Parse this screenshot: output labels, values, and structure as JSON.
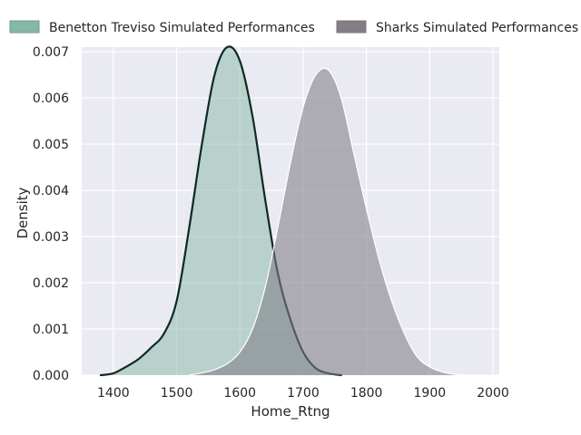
{
  "chart_data": {
    "type": "area",
    "title": "",
    "xlabel": "Home_Rtng",
    "ylabel": "Density",
    "xlim": [
      1350,
      2010
    ],
    "ylim": [
      0,
      0.0071
    ],
    "x_ticks": [
      1400,
      1500,
      1600,
      1700,
      1800,
      1900,
      2000
    ],
    "y_ticks": [
      0.0,
      0.001,
      0.002,
      0.003,
      0.004,
      0.005,
      0.006,
      0.007
    ],
    "x_tick_labels": [
      "1400",
      "1500",
      "1600",
      "1700",
      "1800",
      "1900",
      "2000"
    ],
    "y_tick_labels": [
      "0.000",
      "0.001",
      "0.002",
      "0.003",
      "0.004",
      "0.005",
      "0.006",
      "0.007"
    ],
    "grid": true,
    "legend_position": "top",
    "series": [
      {
        "name": "Benetton Treviso Simulated Performances",
        "color": "#86b8a8",
        "edge_color": "#0f2a20",
        "points": [
          [
            1380,
            0.0
          ],
          [
            1400,
            4e-05
          ],
          [
            1420,
            0.00018
          ],
          [
            1440,
            0.00035
          ],
          [
            1460,
            0.0006
          ],
          [
            1480,
            0.0009
          ],
          [
            1500,
            0.0016
          ],
          [
            1520,
            0.0032
          ],
          [
            1540,
            0.005
          ],
          [
            1560,
            0.0065
          ],
          [
            1580,
            0.0071
          ],
          [
            1600,
            0.0068
          ],
          [
            1620,
            0.0056
          ],
          [
            1640,
            0.0038
          ],
          [
            1660,
            0.0022
          ],
          [
            1680,
            0.0012
          ],
          [
            1700,
            0.0005
          ],
          [
            1720,
            0.00015
          ],
          [
            1740,
            4e-05
          ],
          [
            1760,
            0.0
          ]
        ]
      },
      {
        "name": "Sharks Simulated Performances",
        "color": "#827d87",
        "edge_color": "#ffffff",
        "points": [
          [
            1520,
            0.0
          ],
          [
            1540,
            5e-05
          ],
          [
            1560,
            0.00012
          ],
          [
            1580,
            0.00025
          ],
          [
            1600,
            0.0005
          ],
          [
            1620,
            0.001
          ],
          [
            1640,
            0.0019
          ],
          [
            1660,
            0.0032
          ],
          [
            1680,
            0.0046
          ],
          [
            1700,
            0.0058
          ],
          [
            1720,
            0.0065
          ],
          [
            1740,
            0.0066
          ],
          [
            1760,
            0.006
          ],
          [
            1780,
            0.0048
          ],
          [
            1800,
            0.0036
          ],
          [
            1820,
            0.0025
          ],
          [
            1840,
            0.0016
          ],
          [
            1860,
            0.0009
          ],
          [
            1880,
            0.0004
          ],
          [
            1900,
            0.00018
          ],
          [
            1920,
            7e-05
          ],
          [
            1940,
            2e-05
          ],
          [
            1970,
            0.0
          ]
        ]
      }
    ],
    "axis_background": "#eaeaf2",
    "grid_color": "#ffffff",
    "text_color": "#262626"
  }
}
